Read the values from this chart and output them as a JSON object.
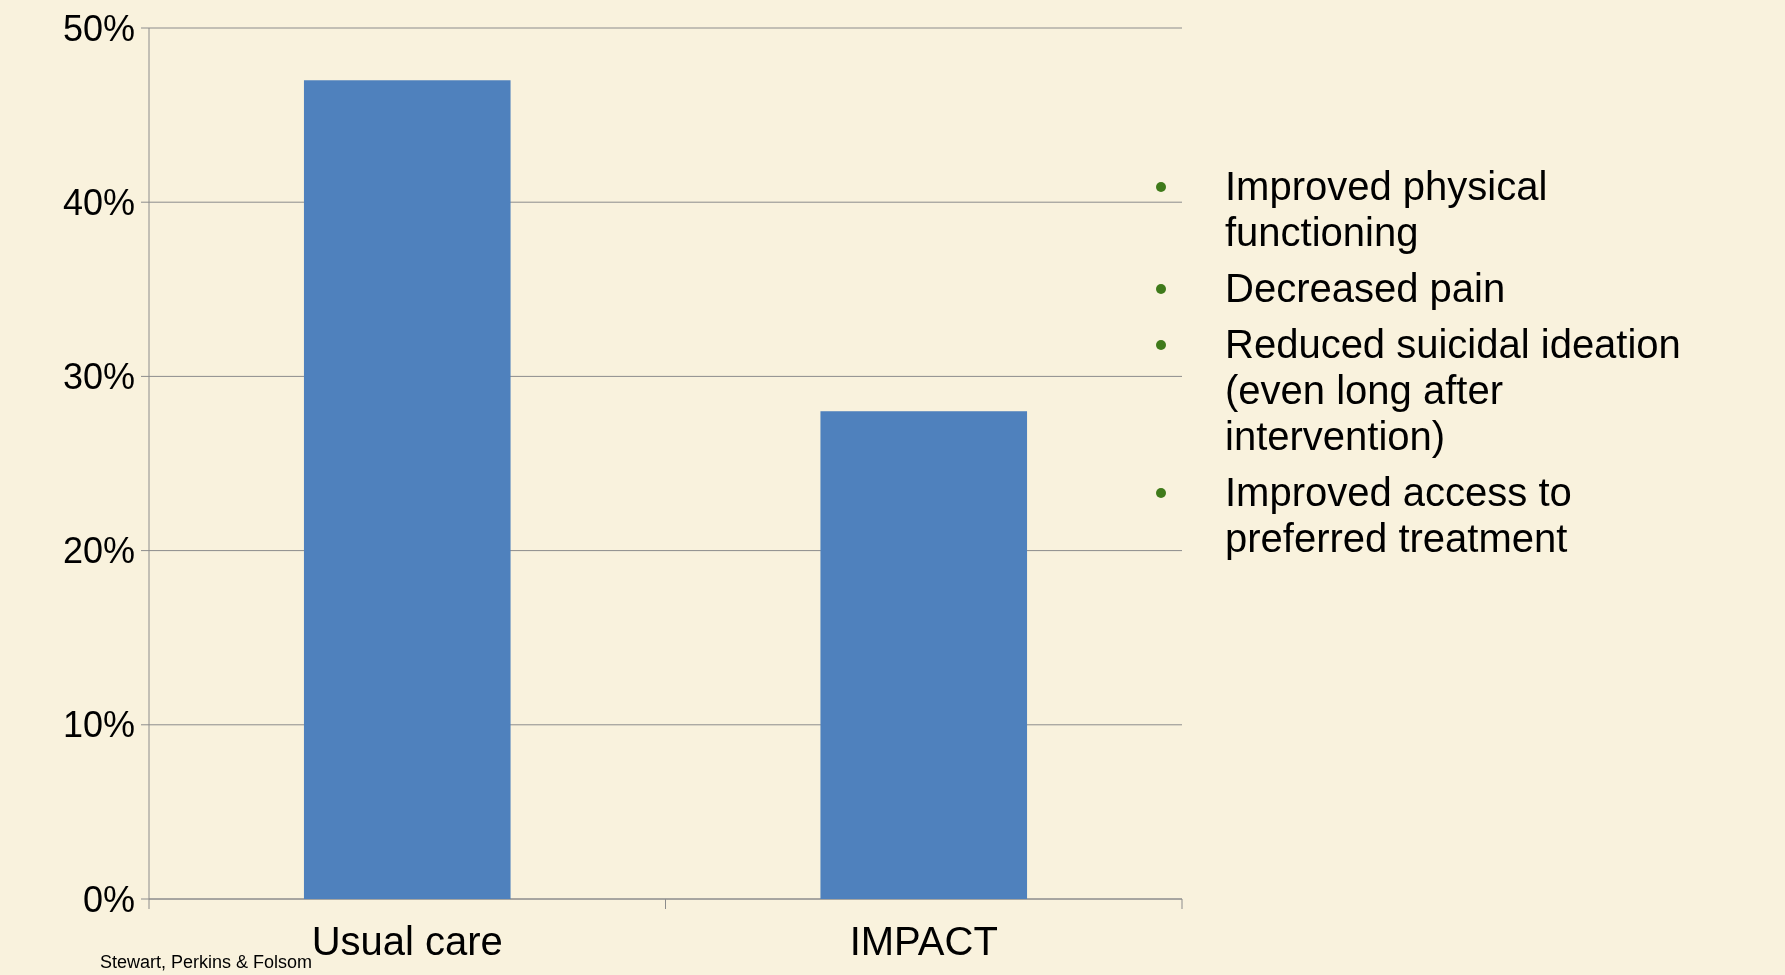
{
  "chart_data": {
    "type": "bar",
    "categories": [
      "Usual care",
      "IMPACT"
    ],
    "values": [
      47,
      28
    ],
    "color": "#4f81bd",
    "ylim": [
      0,
      50
    ],
    "yticks": [
      {
        "value": 0,
        "label": "0%"
      },
      {
        "value": 10,
        "label": "10%"
      },
      {
        "value": 20,
        "label": "20%"
      },
      {
        "value": 30,
        "label": "30%"
      },
      {
        "value": 40,
        "label": "40%"
      },
      {
        "value": 50,
        "label": "50%"
      }
    ],
    "grid": "y",
    "annotations": [
      "Improved physical functioning",
      "Decreased pain",
      "Reduced suicidal ideation (even long after intervention)",
      "Improved access to preferred treatment",
      "Stewart, Perkins & Folsom"
    ]
  }
}
